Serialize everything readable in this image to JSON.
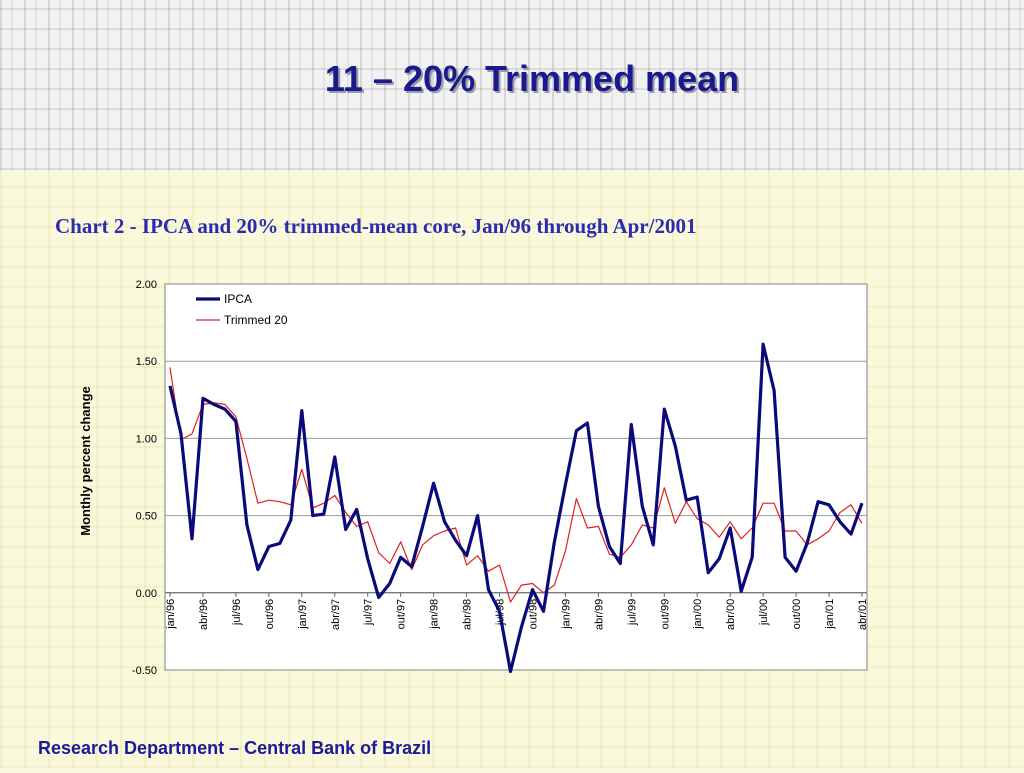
{
  "slide": {
    "title": "11 – 20% Trimmed mean",
    "caption": "Chart 2 - IPCA and 20% trimmed-mean core, Jan/96 through Apr/2001",
    "footer": "Research Department – Central Bank of Brazil"
  },
  "colors": {
    "ipca": "#0a0a7a",
    "trimmed": "#e02020",
    "title": "#1a1a8c",
    "caption": "#2b2bb0",
    "footer": "#1a1a9c"
  },
  "chart_data": {
    "type": "line",
    "title": "",
    "xlabel": "",
    "ylabel": "Monthly percent change",
    "ylim": [
      -0.5,
      2.0
    ],
    "yticks": [
      -0.5,
      0.0,
      0.5,
      1.0,
      1.5,
      2.0
    ],
    "ytick_labels": [
      "-0.50",
      "0.00",
      "0.50",
      "1.00",
      "1.50",
      "2.00"
    ],
    "grid": true,
    "legend_position": "top-left",
    "xtick_labels": [
      {
        "index": 0,
        "label": "jan/96"
      },
      {
        "index": 3,
        "label": "abr/96"
      },
      {
        "index": 6,
        "label": "jul/96"
      },
      {
        "index": 9,
        "label": "out/96"
      },
      {
        "index": 12,
        "label": "jan/97"
      },
      {
        "index": 15,
        "label": "abr/97"
      },
      {
        "index": 18,
        "label": "jul/97"
      },
      {
        "index": 21,
        "label": "out/97"
      },
      {
        "index": 24,
        "label": "jan/98"
      },
      {
        "index": 27,
        "label": "abr/98"
      },
      {
        "index": 30,
        "label": "jul/98"
      },
      {
        "index": 33,
        "label": "out/98"
      },
      {
        "index": 36,
        "label": "jan/99"
      },
      {
        "index": 39,
        "label": "abr/99"
      },
      {
        "index": 42,
        "label": "jul/99"
      },
      {
        "index": 45,
        "label": "out/99"
      },
      {
        "index": 48,
        "label": "jan/00"
      },
      {
        "index": 51,
        "label": "abr/00"
      },
      {
        "index": 54,
        "label": "jul/00"
      },
      {
        "index": 57,
        "label": "out/00"
      },
      {
        "index": 60,
        "label": "jan/01"
      },
      {
        "index": 63,
        "label": "abr/01"
      }
    ],
    "series": [
      {
        "name": "IPCA",
        "values": [
          1.34,
          1.03,
          0.35,
          1.26,
          1.22,
          1.19,
          1.11,
          0.44,
          0.15,
          0.3,
          0.32,
          0.47,
          1.18,
          0.5,
          0.51,
          0.88,
          0.41,
          0.54,
          0.22,
          -0.03,
          0.06,
          0.23,
          0.17,
          0.43,
          0.71,
          0.46,
          0.34,
          0.24,
          0.5,
          0.02,
          -0.12,
          -0.51,
          -0.22,
          0.02,
          -0.12,
          0.33,
          0.7,
          1.05,
          1.1,
          0.56,
          0.3,
          0.19,
          1.09,
          0.56,
          0.31,
          1.19,
          0.95,
          0.6,
          0.62,
          0.13,
          0.22,
          0.42,
          0.01,
          0.23,
          1.61,
          1.31,
          0.23,
          0.14,
          0.32,
          0.59,
          0.57,
          0.46,
          0.38,
          0.58
        ]
      },
      {
        "name": "Trimmed 20",
        "values": [
          1.46,
          0.99,
          1.03,
          1.22,
          1.23,
          1.22,
          1.14,
          0.87,
          0.58,
          0.6,
          0.59,
          0.57,
          0.8,
          0.55,
          0.58,
          0.63,
          0.52,
          0.43,
          0.46,
          0.26,
          0.19,
          0.33,
          0.15,
          0.31,
          0.37,
          0.4,
          0.42,
          0.18,
          0.24,
          0.14,
          0.18,
          -0.06,
          0.05,
          0.06,
          0.0,
          0.05,
          0.27,
          0.61,
          0.42,
          0.43,
          0.25,
          0.23,
          0.31,
          0.44,
          0.42,
          0.68,
          0.45,
          0.59,
          0.48,
          0.44,
          0.36,
          0.46,
          0.35,
          0.42,
          0.58,
          0.58,
          0.4,
          0.4,
          0.31,
          0.35,
          0.4,
          0.52,
          0.57,
          0.45
        ]
      }
    ]
  }
}
